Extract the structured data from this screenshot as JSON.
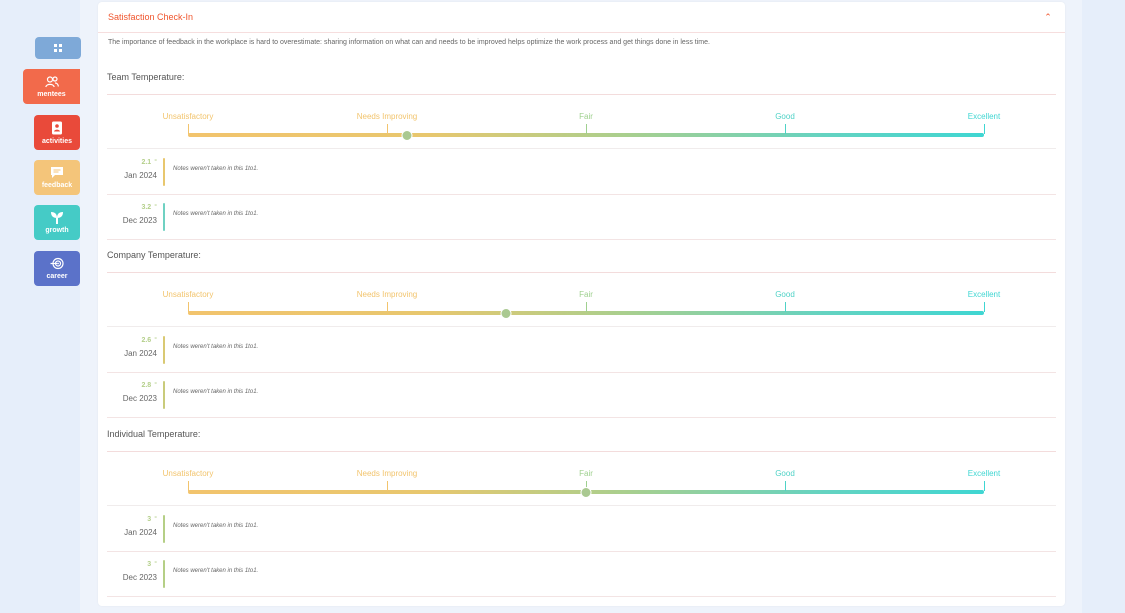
{
  "sidebar": {
    "items": [
      {
        "id": "home",
        "label": "",
        "icon": "grid-icon"
      },
      {
        "id": "mentees",
        "label": "mentees",
        "icon": "users-icon"
      },
      {
        "id": "activities",
        "label": "activities",
        "icon": "notebook-icon"
      },
      {
        "id": "feedback",
        "label": "feedback",
        "icon": "chat-icon"
      },
      {
        "id": "growth",
        "label": "growth",
        "icon": "sprout-icon"
      },
      {
        "id": "career",
        "label": "career",
        "icon": "target-icon"
      }
    ]
  },
  "card": {
    "title": "Satisfaction Check-In",
    "intro": "The importance of feedback in the workplace is hard to overestimate: sharing information on what can and needs to be improved helps optimize the work process and get things done in less time."
  },
  "scale_labels": [
    "Unsatisfactory",
    "Needs Improving",
    "Fair",
    "Good",
    "Excellent"
  ],
  "scale_colors": [
    "#f2c46d",
    "#f2c46d",
    "#9fd08f",
    "#4fd2c6",
    "#3fd6d2"
  ],
  "sections": [
    {
      "title": "Team Temperature:",
      "current": 2.1,
      "history": [
        {
          "score": "2.1",
          "date": "Jan 2024",
          "note": "Notes weren't taken in this 1to1.",
          "bar": "#e8c76e"
        },
        {
          "score": "3.2",
          "date": "Dec 2023",
          "note": "Notes weren't taken in this 1to1.",
          "bar": "#6fd1c2"
        }
      ]
    },
    {
      "title": "Company Temperature:",
      "current": 2.6,
      "history": [
        {
          "score": "2.6",
          "date": "Jan 2024",
          "note": "Notes weren't taken in this 1to1.",
          "bar": "#d9c973"
        },
        {
          "score": "2.8",
          "date": "Dec 2023",
          "note": "Notes weren't taken in this 1to1.",
          "bar": "#c9cb7b"
        }
      ]
    },
    {
      "title": "Individual Temperature:",
      "current": 3,
      "history": [
        {
          "score": "3",
          "date": "Jan 2024",
          "note": "Notes weren't taken in this 1to1.",
          "bar": "#b5cf86"
        },
        {
          "score": "3",
          "date": "Dec 2023",
          "note": "Notes weren't taken in this 1to1.",
          "bar": "#b5cf86"
        }
      ]
    }
  ]
}
